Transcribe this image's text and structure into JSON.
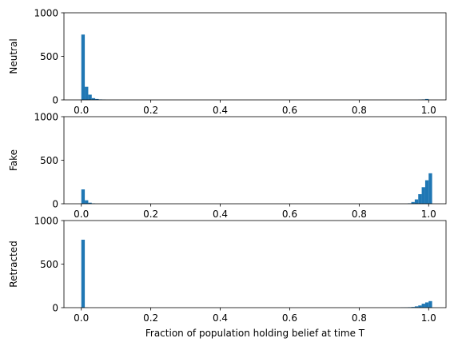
{
  "colors": {
    "bar": "#1f77b4",
    "axis": "#000000",
    "background": "#ffffff"
  },
  "chart_data": [
    {
      "type": "bar",
      "ylabel": "Neutral",
      "xlabel": "",
      "xlim": [
        -0.05,
        1.05
      ],
      "ylim": [
        0,
        1000
      ],
      "xticks": [
        "0.0",
        "0.2",
        "0.4",
        "0.6",
        "0.8",
        "1.0"
      ],
      "yticks": [
        "0",
        "500",
        "1000"
      ],
      "bin_width": 0.01,
      "bins": [
        {
          "x": 0.0,
          "y": 750
        },
        {
          "x": 0.01,
          "y": 150
        },
        {
          "x": 0.02,
          "y": 60
        },
        {
          "x": 0.03,
          "y": 20
        },
        {
          "x": 0.04,
          "y": 10
        },
        {
          "x": 0.05,
          "y": 5
        },
        {
          "x": 0.06,
          "y": 2
        },
        {
          "x": 0.97,
          "y": 2
        },
        {
          "x": 0.98,
          "y": 5
        },
        {
          "x": 0.99,
          "y": 10
        }
      ]
    },
    {
      "type": "bar",
      "ylabel": "Fake",
      "xlabel": "",
      "xlim": [
        -0.05,
        1.05
      ],
      "ylim": [
        0,
        1000
      ],
      "xticks": [
        "0.0",
        "0.2",
        "0.4",
        "0.6",
        "0.8",
        "1.0"
      ],
      "yticks": [
        "0",
        "500",
        "1000"
      ],
      "bin_width": 0.01,
      "bins": [
        {
          "x": 0.0,
          "y": 165
        },
        {
          "x": 0.01,
          "y": 40
        },
        {
          "x": 0.02,
          "y": 12
        },
        {
          "x": 0.03,
          "y": 4
        },
        {
          "x": 0.94,
          "y": 5
        },
        {
          "x": 0.95,
          "y": 20
        },
        {
          "x": 0.96,
          "y": 50
        },
        {
          "x": 0.97,
          "y": 110
        },
        {
          "x": 0.98,
          "y": 190
        },
        {
          "x": 0.99,
          "y": 270
        },
        {
          "x": 1.0,
          "y": 350
        }
      ]
    },
    {
      "type": "bar",
      "ylabel": "Retracted",
      "xlabel": "Fraction of population holding belief at time T",
      "xlim": [
        -0.05,
        1.05
      ],
      "ylim": [
        0,
        1000
      ],
      "xticks": [
        "0.0",
        "0.2",
        "0.4",
        "0.6",
        "0.8",
        "1.0"
      ],
      "yticks": [
        "0",
        "500",
        "1000"
      ],
      "bin_width": 0.01,
      "bins": [
        {
          "x": 0.0,
          "y": 780
        },
        {
          "x": 0.01,
          "y": 3
        },
        {
          "x": 0.92,
          "y": 2
        },
        {
          "x": 0.93,
          "y": 3
        },
        {
          "x": 0.94,
          "y": 5
        },
        {
          "x": 0.95,
          "y": 8
        },
        {
          "x": 0.96,
          "y": 15
        },
        {
          "x": 0.97,
          "y": 25
        },
        {
          "x": 0.98,
          "y": 45
        },
        {
          "x": 0.99,
          "y": 60
        },
        {
          "x": 1.0,
          "y": 75
        }
      ]
    }
  ]
}
